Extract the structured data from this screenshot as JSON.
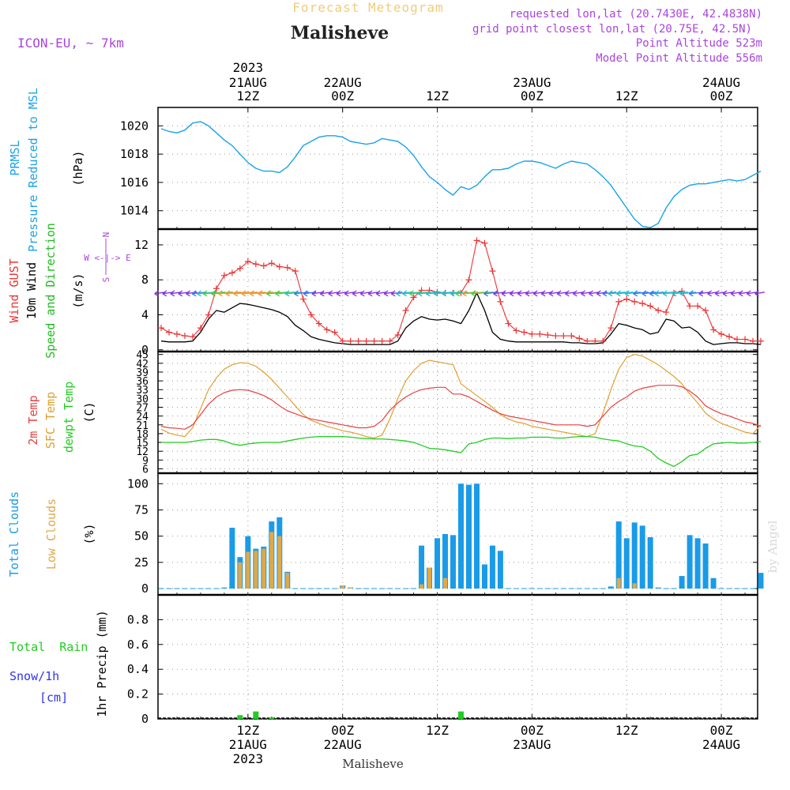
{
  "header": {
    "subtitle": "Forecast Meteogram",
    "location": "Malisheve",
    "model": "ICON-EU, ~ 7km",
    "requested": "requested lon,lat (20.7430E, 42.4838N)",
    "gridpoint": "grid point closest lon,lat (20.75E, 42.5N)",
    "point_alt": "Point Altitude 523m",
    "model_alt": "Model Point Altitude 556m",
    "footer_location": "Malisheve",
    "credit": "by Angel"
  },
  "time_axis": {
    "top_labels": [
      {
        "l1": "2023",
        "l2": "21AUG",
        "l3": "12Z",
        "h": 12
      },
      {
        "l1": "",
        "l2": "22AUG",
        "l3": "00Z",
        "h": 24
      },
      {
        "l1": "",
        "l2": "",
        "l3": "12Z",
        "h": 36
      },
      {
        "l1": "",
        "l2": "23AUG",
        "l3": "00Z",
        "h": 48
      },
      {
        "l1": "",
        "l2": "",
        "l3": "12Z",
        "h": 60
      },
      {
        "l1": "",
        "l2": "24AUG",
        "l3": "00Z",
        "h": 72
      }
    ],
    "bottom_labels": [
      {
        "l1": "12Z",
        "l2": "21AUG",
        "l3": "2023",
        "h": 12
      },
      {
        "l1": "00Z",
        "l2": "22AUG",
        "l3": "",
        "h": 24
      },
      {
        "l1": "12Z",
        "l2": "",
        "l3": "",
        "h": 36
      },
      {
        "l1": "00Z",
        "l2": "23AUG",
        "l3": "",
        "h": 48
      },
      {
        "l1": "12Z",
        "l2": "",
        "l3": "",
        "h": 60
      },
      {
        "l1": "00Z",
        "l2": "24AUG",
        "l3": "",
        "h": 72
      }
    ],
    "range_hours": [
      1,
      77
    ]
  },
  "panels": {
    "pressure": {
      "label_line1": "PRMSL",
      "label_line2": "Pressure Reduced to MSL",
      "unit": "(hPa)",
      "color": "#1aa3e8",
      "yticks": [
        "1014",
        "1016",
        "1018",
        "1020"
      ]
    },
    "wind": {
      "label_gust": "Wind GUST",
      "label_wind": "10m Wind",
      "label_dir": "Speed and Direction",
      "unit": "(m/s)",
      "compass_n": "N",
      "compass_we": "W <-|-> E",
      "compass_s": "S",
      "gust_color": "#ee3333",
      "wind_color": "#000000",
      "dir_color": "#22bb22",
      "compass_color": "#aa44dd",
      "yticks": [
        "0",
        "4",
        "8",
        "12"
      ]
    },
    "temp": {
      "label_2m": "2m Temp",
      "label_sfc": "SFC Temp",
      "label_dew": "dewpt Temp",
      "unit": "(C)",
      "c2m": "#e84040",
      "csfc": "#e0a030",
      "cdew": "#22cc22",
      "yticks": [
        "6",
        "9",
        "12",
        "15",
        "18",
        "21",
        "24",
        "27",
        "30",
        "33",
        "36",
        "39",
        "42",
        "45"
      ]
    },
    "clouds": {
      "label_total": "Total Clouds",
      "label_low": "Low Clouds",
      "unit": "(%)",
      "ctotal": "#1a9be8",
      "clow": "#e0a848",
      "yticks": [
        "0",
        "25",
        "50",
        "75",
        "100"
      ]
    },
    "precip": {
      "label_rain": "Total  Rain",
      "label_snow": "Snow/1h",
      "label_cm": "[cm]",
      "unit": "1hr Precip (mm)",
      "crain": "#22cc22",
      "csnow": "#3333ee",
      "yticks": [
        "0",
        "0.2",
        "0.4",
        "0.6",
        "0.8"
      ]
    }
  },
  "chart_data": [
    {
      "type": "line",
      "title": "PRMSL Pressure Reduced to MSL",
      "ylabel": "(hPa)",
      "ylim": [
        1012.7,
        1021.3
      ],
      "x_hours": [
        1,
        2,
        3,
        4,
        5,
        6,
        7,
        8,
        9,
        10,
        11,
        12,
        13,
        14,
        15,
        16,
        17,
        18,
        19,
        20,
        21,
        22,
        23,
        24,
        25,
        26,
        27,
        28,
        29,
        30,
        31,
        32,
        33,
        34,
        35,
        36,
        37,
        38,
        39,
        40,
        41,
        42,
        43,
        44,
        45,
        46,
        47,
        48,
        49,
        50,
        51,
        52,
        53,
        54,
        55,
        56,
        57,
        58,
        59,
        60,
        61,
        62,
        63,
        64,
        65,
        66,
        67,
        68,
        69,
        70,
        71,
        72,
        73,
        74,
        75,
        76,
        77
      ],
      "series": [
        {
          "values": [
            1019.8,
            1019.6,
            1019.5,
            1019.7,
            1020.2,
            1020.3,
            1020.0,
            1019.5,
            1019.0,
            1018.6,
            1018.0,
            1017.4,
            1017.0,
            1016.8,
            1016.8,
            1016.7,
            1017.1,
            1017.8,
            1018.6,
            1018.9,
            1019.2,
            1019.3,
            1019.3,
            1019.2,
            1018.9,
            1018.8,
            1018.7,
            1018.8,
            1019.1,
            1019.0,
            1018.9,
            1018.5,
            1017.9,
            1017.1,
            1016.4,
            1016.0,
            1015.5,
            1015.1,
            1015.7,
            1015.5,
            1015.8,
            1016.4,
            1016.9,
            1016.9,
            1017.0,
            1017.3,
            1017.5,
            1017.5,
            1017.4,
            1017.2,
            1017.0,
            1017.3,
            1017.5,
            1017.4,
            1017.3,
            1016.9,
            1016.4,
            1015.8,
            1015.0,
            1014.2,
            1013.4,
            1012.9,
            1012.8,
            1013.1,
            1014.2,
            1015.0,
            1015.5,
            1015.8,
            1015.9,
            1015.9,
            1016.0,
            1016.1,
            1016.2,
            1016.1,
            1016.2,
            1016.5,
            1016.8
          ]
        }
      ]
    },
    {
      "type": "line",
      "title": "Wind GUST / 10m Wind",
      "ylabel": "(m/s)",
      "ylim": [
        -0.2,
        13.8
      ],
      "x_hours": [
        1,
        2,
        3,
        4,
        5,
        6,
        7,
        8,
        9,
        10,
        11,
        12,
        13,
        14,
        15,
        16,
        17,
        18,
        19,
        20,
        21,
        22,
        23,
        24,
        25,
        26,
        27,
        28,
        29,
        30,
        31,
        32,
        33,
        34,
        35,
        36,
        37,
        38,
        39,
        40,
        41,
        42,
        43,
        44,
        45,
        46,
        47,
        48,
        49,
        50,
        51,
        52,
        53,
        54,
        55,
        56,
        57,
        58,
        59,
        60,
        61,
        62,
        63,
        64,
        65,
        66,
        67,
        68,
        69,
        70,
        71,
        72,
        73,
        74,
        75,
        76,
        77
      ],
      "series": [
        {
          "name": "Wind GUST",
          "values": [
            2.5,
            2.0,
            1.8,
            1.6,
            1.5,
            2.5,
            4.0,
            7.0,
            8.5,
            8.8,
            9.3,
            10.1,
            9.8,
            9.6,
            9.9,
            9.5,
            9.4,
            9.0,
            5.8,
            4.0,
            3.0,
            2.3,
            2.0,
            1.0,
            1.0,
            1.0,
            1.0,
            1.0,
            1.0,
            1.0,
            1.7,
            4.5,
            6.0,
            6.8,
            6.8,
            6.6,
            6.5,
            6.5,
            6.5,
            8.0,
            12.5,
            12.2,
            9.0,
            5.5,
            3.0,
            2.2,
            2.0,
            1.8,
            1.8,
            1.7,
            1.6,
            1.6,
            1.6,
            1.3,
            1.0,
            1.0,
            1.0,
            2.5,
            5.5,
            5.8,
            5.5,
            5.3,
            5.0,
            4.5,
            4.3,
            6.5,
            6.7,
            5.0,
            5.0,
            4.5,
            2.3,
            1.8,
            1.5,
            1.2,
            1.2,
            1.0,
            1.0
          ]
        },
        {
          "name": "10m Wind",
          "values": [
            1.0,
            0.9,
            0.9,
            0.9,
            1.0,
            2.0,
            3.5,
            4.5,
            4.3,
            4.8,
            5.3,
            5.2,
            5.0,
            4.8,
            4.6,
            4.3,
            3.8,
            2.8,
            2.2,
            1.5,
            1.2,
            1.0,
            0.8,
            0.7,
            0.6,
            0.6,
            0.6,
            0.6,
            0.6,
            0.6,
            1.0,
            2.5,
            3.3,
            3.8,
            3.5,
            3.4,
            3.5,
            3.3,
            3.0,
            4.5,
            6.5,
            4.5,
            2.0,
            1.2,
            1.0,
            0.9,
            0.9,
            0.9,
            0.9,
            0.9,
            0.9,
            0.9,
            0.8,
            0.8,
            0.7,
            0.7,
            0.8,
            1.8,
            3.0,
            2.8,
            2.5,
            2.3,
            1.8,
            2.0,
            3.5,
            3.3,
            2.5,
            2.6,
            2.0,
            1.0,
            0.6,
            0.7,
            0.8,
            0.8,
            0.7,
            0.7,
            0.6
          ]
        }
      ]
    },
    {
      "type": "line",
      "title": "2m Temp / SFC Temp / dewpt Temp",
      "ylabel": "(C)",
      "ylim": [
        4.5,
        46
      ],
      "x_hours": [
        1,
        2,
        3,
        4,
        5,
        6,
        7,
        8,
        9,
        10,
        11,
        12,
        13,
        14,
        15,
        16,
        17,
        18,
        19,
        20,
        21,
        22,
        23,
        24,
        25,
        26,
        27,
        28,
        29,
        30,
        31,
        32,
        33,
        34,
        35,
        36,
        37,
        38,
        39,
        40,
        41,
        42,
        43,
        44,
        45,
        46,
        47,
        48,
        49,
        50,
        51,
        52,
        53,
        54,
        55,
        56,
        57,
        58,
        59,
        60,
        61,
        62,
        63,
        64,
        65,
        66,
        67,
        68,
        69,
        70,
        71,
        72,
        73,
        74,
        75,
        76,
        77
      ],
      "series": [
        {
          "name": "2m Temp",
          "values": [
            20.5,
            20.0,
            19.8,
            19.5,
            21.0,
            24.5,
            28.0,
            30.5,
            32.0,
            32.8,
            33.0,
            32.8,
            32.0,
            31.0,
            29.5,
            27.5,
            25.8,
            24.8,
            23.8,
            23.0,
            22.5,
            22.0,
            21.5,
            21.0,
            20.5,
            20.0,
            20.0,
            20.5,
            22.5,
            26.0,
            28.5,
            30.5,
            32.0,
            33.0,
            33.5,
            33.8,
            33.8,
            31.5,
            31.5,
            30.5,
            29.0,
            27.5,
            26.0,
            24.8,
            24.0,
            23.5,
            23.0,
            22.5,
            22.0,
            21.5,
            21.0,
            21.0,
            21.0,
            21.0,
            20.5,
            21.0,
            24.0,
            27.0,
            29.0,
            30.5,
            32.5,
            33.5,
            34.0,
            34.5,
            34.5,
            34.5,
            34.0,
            32.5,
            30.5,
            27.5,
            26.0,
            24.8,
            24.0,
            23.0,
            22.0,
            21.5,
            20.5
          ]
        },
        {
          "name": "SFC Temp",
          "values": [
            19.5,
            18.2,
            17.5,
            17.0,
            20.0,
            26.5,
            33.0,
            37.0,
            40.0,
            41.5,
            42.2,
            42.0,
            41.0,
            39.0,
            36.5,
            33.5,
            30.5,
            27.5,
            24.5,
            22.5,
            21.5,
            20.5,
            19.8,
            19.0,
            18.5,
            17.8,
            17.0,
            16.5,
            17.5,
            23.0,
            30.0,
            36.0,
            39.5,
            42.0,
            43.0,
            42.5,
            42.0,
            41.5,
            35.0,
            33.0,
            31.0,
            29.0,
            27.0,
            24.5,
            23.0,
            22.0,
            21.5,
            20.5,
            20.0,
            19.5,
            19.0,
            18.5,
            18.0,
            17.5,
            17.0,
            18.0,
            25.0,
            33.0,
            40.0,
            44.0,
            45.0,
            44.5,
            43.0,
            41.5,
            39.5,
            37.5,
            35.0,
            31.5,
            28.5,
            25.0,
            23.0,
            21.5,
            20.5,
            19.5,
            18.5,
            18.0,
            21.0
          ]
        },
        {
          "name": "dewpt Temp",
          "values": [
            15.0,
            15.0,
            15.0,
            15.0,
            15.3,
            15.8,
            16.0,
            16.0,
            15.5,
            14.5,
            14.0,
            14.5,
            14.8,
            15.0,
            15.0,
            15.0,
            15.5,
            16.0,
            16.5,
            16.8,
            17.0,
            17.0,
            17.0,
            17.0,
            16.8,
            16.5,
            16.3,
            16.2,
            16.2,
            16.0,
            15.8,
            15.5,
            15.0,
            14.0,
            13.0,
            12.8,
            12.5,
            12.0,
            11.5,
            14.5,
            15.0,
            16.0,
            16.5,
            16.5,
            16.3,
            16.5,
            16.5,
            16.8,
            16.8,
            16.8,
            16.5,
            16.5,
            16.8,
            17.0,
            17.0,
            16.8,
            16.2,
            15.8,
            15.5,
            14.5,
            13.8,
            13.5,
            12.0,
            9.5,
            8.0,
            6.8,
            8.5,
            10.5,
            11.0,
            13.0,
            14.5,
            14.8,
            15.0,
            14.8,
            14.8,
            15.0,
            15.3
          ]
        }
      ]
    },
    {
      "type": "bar",
      "title": "Total Clouds / Low Clouds",
      "ylabel": "(%)",
      "ylim": [
        -6,
        110
      ],
      "x_hours": [
        1,
        2,
        3,
        4,
        5,
        6,
        7,
        8,
        9,
        10,
        11,
        12,
        13,
        14,
        15,
        16,
        17,
        18,
        19,
        20,
        21,
        22,
        23,
        24,
        25,
        26,
        27,
        28,
        29,
        30,
        31,
        32,
        33,
        34,
        35,
        36,
        37,
        38,
        39,
        40,
        41,
        42,
        43,
        44,
        45,
        46,
        47,
        48,
        49,
        50,
        51,
        52,
        53,
        54,
        55,
        56,
        57,
        58,
        59,
        60,
        61,
        62,
        63,
        64,
        65,
        66,
        67,
        68,
        69,
        70,
        71,
        72,
        73,
        74,
        75,
        76,
        77
      ],
      "series": [
        {
          "name": "Total Clouds",
          "values": [
            0,
            0,
            0,
            0,
            0,
            0,
            0,
            0,
            1,
            58,
            30,
            50,
            38,
            40,
            64,
            68,
            16,
            0,
            0,
            0,
            0,
            0,
            0,
            3,
            1,
            0,
            0,
            0,
            0,
            0,
            0,
            0,
            0,
            41,
            20,
            48,
            52,
            51,
            100,
            99,
            100,
            23,
            41,
            36,
            0,
            0,
            0,
            0,
            0,
            0,
            0,
            0,
            0,
            0,
            0,
            0,
            0,
            2,
            64,
            48,
            63,
            60,
            49,
            1,
            0,
            0,
            12,
            51,
            48,
            43,
            10,
            0,
            0,
            0,
            0,
            0,
            15
          ]
        },
        {
          "name": "Low Clouds",
          "values": [
            0,
            0,
            0,
            0,
            0,
            0,
            0,
            0,
            0,
            0,
            25,
            35,
            36,
            38,
            54,
            50,
            15,
            0,
            0,
            0,
            0,
            0,
            0,
            3,
            1,
            0,
            0,
            0,
            0,
            0,
            0,
            0,
            0,
            4,
            20,
            0,
            10,
            0,
            0,
            0,
            0,
            0,
            0,
            0,
            0,
            0,
            0,
            0,
            0,
            0,
            0,
            0,
            0,
            0,
            0,
            0,
            0,
            0,
            10,
            0,
            5,
            0,
            0,
            0,
            0,
            0,
            0,
            0,
            0,
            0,
            0,
            0,
            0,
            0,
            0,
            0,
            0
          ]
        }
      ]
    },
    {
      "type": "bar",
      "title": "1hr Precip",
      "ylabel": "1hr Precip (mm)",
      "ylim": [
        0,
        1.0
      ],
      "series": [
        {
          "name": "Total Rain",
          "x_hours": [
            11,
            13,
            15,
            39
          ],
          "values": [
            0.03,
            0.06,
            0.01,
            0.06
          ]
        },
        {
          "name": "Snow/1h",
          "x_hours": [],
          "values": []
        }
      ]
    }
  ]
}
